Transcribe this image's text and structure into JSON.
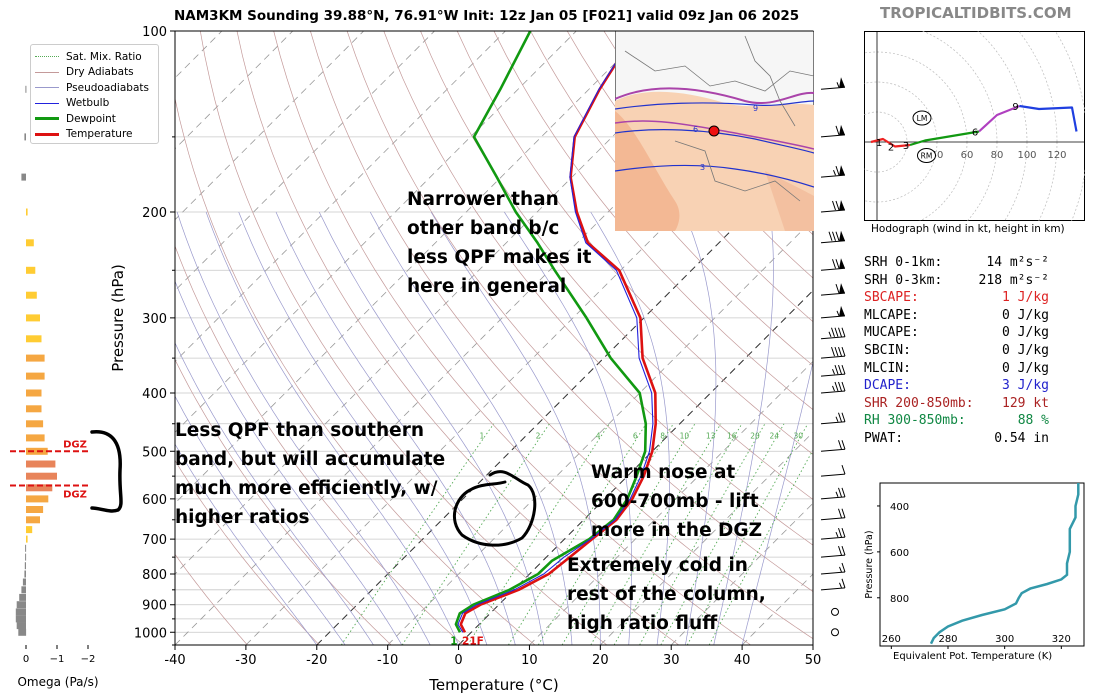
{
  "header": {
    "title": "NAM3KM Sounding 39.88°N, 76.91°W Init: 12z Jan 05 [F021] valid 09z Jan 06 2025",
    "watermark": "TROPICALTIDBITS.COM"
  },
  "legend": {
    "items": [
      {
        "label": "Sat. Mix. Ratio",
        "color": "#55aa55",
        "style": "dotted"
      },
      {
        "label": "Dry Adiabats",
        "color": "#c49a9a",
        "style": "solid"
      },
      {
        "label": "Pseudoadiabats",
        "color": "#9999cc",
        "style": "solid"
      },
      {
        "label": "Wetbulb",
        "color": "#2222dd",
        "style": "solid"
      },
      {
        "label": "Dewpoint",
        "color": "#119911",
        "style": "bold"
      },
      {
        "label": "Temperature",
        "color": "#dd1111",
        "style": "bold"
      }
    ]
  },
  "chart_data": [
    {
      "type": "line",
      "name": "skew-t",
      "xlabel": "Temperature (°C)",
      "ylabel": "Pressure (hPa)",
      "xlim": [
        -40,
        50
      ],
      "ylim": [
        1050,
        100
      ],
      "y_scale": "log",
      "x_ticks": [
        -40,
        -30,
        -20,
        -10,
        0,
        10,
        20,
        30,
        40,
        50
      ],
      "y_ticks": [
        100,
        200,
        300,
        400,
        500,
        600,
        700,
        800,
        900,
        1000
      ],
      "mixing_ratio_labels": [
        "1",
        "2",
        "4",
        "6",
        "8",
        "10",
        "13",
        "16",
        "20",
        "24",
        "30",
        "36"
      ],
      "series": [
        {
          "name": "Temperature",
          "color": "#dd1111",
          "points": [
            [
              -0.9,
              1000
            ],
            [
              -2.6,
              970
            ],
            [
              -3.5,
              930
            ],
            [
              -2.6,
              900
            ],
            [
              0.7,
              850
            ],
            [
              2.7,
              800
            ],
            [
              3.3,
              750
            ],
            [
              3.9,
              700
            ],
            [
              4.6,
              650
            ],
            [
              3.9,
              600
            ],
            [
              2.3,
              550
            ],
            [
              0.0,
              500
            ],
            [
              -3.4,
              450
            ],
            [
              -7.8,
              400
            ],
            [
              -14.5,
              350
            ],
            [
              -20.5,
              300
            ],
            [
              -30.2,
              250
            ],
            [
              -38.5,
              225
            ],
            [
              -44.4,
              200
            ],
            [
              -50.2,
              175
            ],
            [
              -55.3,
              150
            ],
            [
              -58.5,
              125
            ],
            [
              -61.5,
              100
            ]
          ]
        },
        {
          "name": "Dewpoint",
          "color": "#119911",
          "points": [
            [
              -1.6,
              1000
            ],
            [
              -3.3,
              970
            ],
            [
              -4.3,
              930
            ],
            [
              -3.6,
              900
            ],
            [
              -0.6,
              850
            ],
            [
              1.2,
              800
            ],
            [
              1.3,
              760
            ],
            [
              3.5,
              700
            ],
            [
              4.2,
              650
            ],
            [
              3.2,
              600
            ],
            [
              1.3,
              550
            ],
            [
              -1.0,
              500
            ],
            [
              -4.8,
              450
            ],
            [
              -10.0,
              400
            ],
            [
              -19.0,
              350
            ],
            [
              -28.1,
              300
            ],
            [
              -39.3,
              250
            ],
            [
              -45.6,
              225
            ],
            [
              -53.0,
              200
            ],
            [
              -60.6,
              175
            ],
            [
              -69.5,
              150
            ],
            [
              -72.5,
              125
            ],
            [
              -76.5,
              100
            ]
          ]
        },
        {
          "name": "Wetbulb",
          "color": "#2222dd",
          "points": [
            [
              -1.2,
              1000
            ],
            [
              -3.0,
              970
            ],
            [
              -3.9,
              930
            ],
            [
              -3.1,
              900
            ],
            [
              0.1,
              850
            ],
            [
              2.0,
              800
            ],
            [
              2.5,
              750
            ],
            [
              3.7,
              700
            ],
            [
              4.4,
              650
            ],
            [
              3.6,
              600
            ],
            [
              1.9,
              550
            ],
            [
              -0.4,
              500
            ],
            [
              -3.8,
              450
            ],
            [
              -8.3,
              400
            ],
            [
              -15.0,
              350
            ],
            [
              -21.0,
              300
            ],
            [
              -30.6,
              250
            ],
            [
              -38.8,
              225
            ],
            [
              -44.6,
              200
            ],
            [
              -50.3,
              175
            ],
            [
              -55.4,
              150
            ],
            [
              -58.6,
              125
            ],
            [
              -61.6,
              100
            ]
          ]
        }
      ],
      "surface_labels": {
        "dewpoint": "1",
        "temperature": "21F"
      },
      "annotations": [
        {
          "lines": [
            "Narrower than",
            "other band b/c",
            "less QPF makes it",
            "here in general"
          ]
        },
        {
          "lines": [
            "Less QPF than southern",
            "band, but will accumulate",
            "much more efficiently, w/",
            "higher ratios"
          ]
        },
        {
          "lines": [
            "Warm nose at",
            "600-700mb - lift",
            "more in the DGZ"
          ]
        },
        {
          "lines": [
            "Extremely cold in",
            "rest of the column,",
            "high ratio fluff"
          ]
        }
      ]
    },
    {
      "type": "bar",
      "name": "omega",
      "xlabel": "Omega (Pa/s)",
      "x_ticks": [
        "0",
        "−1",
        "−2"
      ],
      "dgz_label": "DGZ",
      "dgz_pressures": [
        500,
        570
      ],
      "bars": [
        [
          1000,
          0.25,
          "gray"
        ],
        [
          975,
          0.3,
          "gray"
        ],
        [
          950,
          0.33,
          "gray"
        ],
        [
          925,
          0.33,
          "gray"
        ],
        [
          900,
          0.3,
          "gray"
        ],
        [
          875,
          0.22,
          "gray"
        ],
        [
          850,
          0.15,
          "gray"
        ],
        [
          825,
          0.1,
          "gray"
        ],
        [
          800,
          0.05,
          "gray"
        ],
        [
          775,
          0.04,
          "gray"
        ],
        [
          750,
          0.03,
          "gray"
        ],
        [
          725,
          0.03,
          "gray"
        ],
        [
          700,
          -0.05,
          "#ffcc33"
        ],
        [
          675,
          -0.2,
          "#ffcc33"
        ],
        [
          650,
          -0.45,
          "#f5a742"
        ],
        [
          625,
          -0.55,
          "#f5a742"
        ],
        [
          600,
          -0.72,
          "#f5a742"
        ],
        [
          575,
          -0.85,
          "#e8845a"
        ],
        [
          550,
          -1.0,
          "#e8845a"
        ],
        [
          525,
          -0.95,
          "#e8845a"
        ],
        [
          500,
          -0.7,
          "#f5a742"
        ],
        [
          475,
          -0.6,
          "#f5a742"
        ],
        [
          450,
          -0.55,
          "#f5a742"
        ],
        [
          425,
          -0.5,
          "#f5a742"
        ],
        [
          400,
          -0.5,
          "#f5a742"
        ],
        [
          375,
          -0.6,
          "#f5a742"
        ],
        [
          350,
          -0.6,
          "#f5a742"
        ],
        [
          325,
          -0.5,
          "#ffcc33"
        ],
        [
          300,
          -0.45,
          "#ffcc33"
        ],
        [
          275,
          -0.35,
          "#ffcc33"
        ],
        [
          250,
          -0.3,
          "#ffcc33"
        ],
        [
          225,
          -0.25,
          "#ffcc33"
        ],
        [
          200,
          -0.05,
          "#ffcc33"
        ],
        [
          175,
          0.15,
          "gray"
        ],
        [
          150,
          0.05,
          "gray"
        ],
        [
          125,
          0.02,
          "gray"
        ]
      ]
    },
    {
      "type": "scatter",
      "name": "hodograph",
      "xlabel": "Hodograph (wind in kt, height in km)",
      "ring_labels": [
        "40",
        "60",
        "80",
        "100",
        "120"
      ],
      "markers": [
        "LM",
        "RM"
      ],
      "height_labels": [
        "1",
        "2",
        "3",
        "6",
        "9"
      ],
      "segments": [
        {
          "color": "#ee2222",
          "points": [
            [
              -4,
              0
            ],
            [
              4,
              2
            ],
            [
              12,
              -3
            ],
            [
              22,
              -2
            ]
          ]
        },
        {
          "color": "#119911",
          "points": [
            [
              22,
              -2
            ],
            [
              32,
              1
            ],
            [
              50,
              4
            ],
            [
              68,
              7
            ]
          ]
        },
        {
          "color": "#b040c0",
          "points": [
            [
              68,
              7
            ],
            [
              80,
              18
            ],
            [
              95,
              24
            ]
          ]
        },
        {
          "color": "#1f3fe0",
          "points": [
            [
              95,
              24
            ],
            [
              108,
              22
            ],
            [
              130,
              23
            ],
            [
              133,
              7
            ]
          ]
        }
      ]
    },
    {
      "type": "line",
      "name": "theta-e",
      "xlabel": "Equivalent Pot. Temperature (K)",
      "ylabel": "Pressure (hPa)",
      "x_ticks": [
        260,
        280,
        300,
        320
      ],
      "y_ticks": [
        400,
        600,
        800
      ],
      "xlim": [
        256,
        328
      ],
      "ylim": [
        1010,
        300
      ],
      "color": "#3399aa",
      "points": [
        [
          274,
          1000
        ],
        [
          275,
          975
        ],
        [
          277,
          950
        ],
        [
          280,
          925
        ],
        [
          285,
          900
        ],
        [
          292,
          875
        ],
        [
          300,
          850
        ],
        [
          304,
          825
        ],
        [
          305,
          800
        ],
        [
          306,
          780
        ],
        [
          309,
          760
        ],
        [
          315,
          740
        ],
        [
          320,
          720
        ],
        [
          322,
          700
        ],
        [
          322,
          650
        ],
        [
          323,
          600
        ],
        [
          323,
          550
        ],
        [
          323,
          500
        ],
        [
          325,
          450
        ],
        [
          325,
          400
        ],
        [
          326,
          350
        ],
        [
          326,
          300
        ]
      ]
    }
  ],
  "wind_barbs": [
    {
      "p": 125,
      "kt": 55
    },
    {
      "p": 150,
      "kt": 60
    },
    {
      "p": 175,
      "kt": 65
    },
    {
      "p": 200,
      "kt": 70
    },
    {
      "p": 225,
      "kt": 80
    },
    {
      "p": 250,
      "kt": 70
    },
    {
      "p": 275,
      "kt": 60
    },
    {
      "p": 300,
      "kt": 55
    },
    {
      "p": 325,
      "kt": 45
    },
    {
      "p": 350,
      "kt": 40
    },
    {
      "p": 375,
      "kt": 35
    },
    {
      "p": 400,
      "kt": 35
    },
    {
      "p": 450,
      "kt": 25
    },
    {
      "p": 500,
      "kt": 20
    },
    {
      "p": 550,
      "kt": 10
    },
    {
      "p": 600,
      "kt": 25
    },
    {
      "p": 650,
      "kt": 20
    },
    {
      "p": 700,
      "kt": 25
    },
    {
      "p": 750,
      "kt": 20
    },
    {
      "p": 800,
      "kt": 15
    },
    {
      "p": 850,
      "kt": 15
    },
    {
      "p": 925,
      "kt": 0
    },
    {
      "p": 1000,
      "kt": 0
    }
  ],
  "indices": [
    {
      "label": "SRH 0-1km:",
      "value": "14 m²s⁻²",
      "color": "#000000"
    },
    {
      "label": "SRH 0-3km:",
      "value": "218 m²s⁻²",
      "color": "#000000"
    },
    {
      "label": "SBCAPE:",
      "value": "1 J/kg",
      "color": "#dd2222"
    },
    {
      "label": "MLCAPE:",
      "value": "0 J/kg",
      "color": "#000000"
    },
    {
      "label": "MUCAPE:",
      "value": "0 J/kg",
      "color": "#000000"
    },
    {
      "label": "SBCIN:",
      "value": "0 J/kg",
      "color": "#000000"
    },
    {
      "label": "MLCIN:",
      "value": "0 J/kg",
      "color": "#000000"
    },
    {
      "label": "DCAPE:",
      "value": "3 J/kg",
      "color": "#2222cc"
    },
    {
      "label": "SHR 200-850mb:",
      "value": "129 kt",
      "color": "#aa2222"
    },
    {
      "label": "RH 300-850mb:",
      "value": "88 %",
      "color": "#118844"
    },
    {
      "label": "PWAT:",
      "value": "0.54 in",
      "color": "#000000"
    }
  ],
  "inset_map": {
    "contour_labels": [
      "9",
      "6",
      "3"
    ]
  }
}
